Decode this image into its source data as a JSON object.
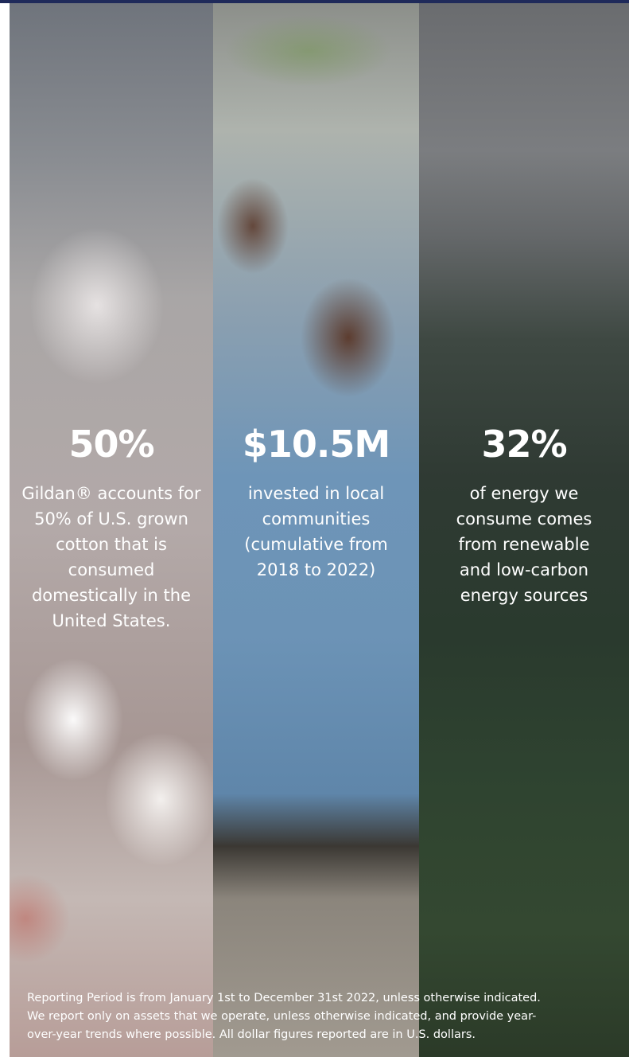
{
  "panels": [
    {
      "stat": "50%",
      "lines": [
        "Gildan® accounts for",
        "50% of U.S. grown",
        "cotton that is",
        "consumed",
        "domestically in the",
        "United States."
      ]
    },
    {
      "stat": "$10.5M",
      "lines": [
        "invested in local",
        "communities",
        "(cumulative from",
        "2018 to 2022)"
      ]
    },
    {
      "stat": "32%",
      "lines": [
        "of energy we",
        "consume comes",
        "from renewable",
        "and low-carbon",
        "energy sources"
      ]
    }
  ],
  "footer": {
    "lines": [
      "Reporting Period is from January 1st to December 31st 2022, unless otherwise indicated.",
      "We report only on assets that we operate, unless otherwise indicated, and provide year-",
      "over-year trends where possible. All dollar figures reported are in U.S. dollars."
    ]
  }
}
